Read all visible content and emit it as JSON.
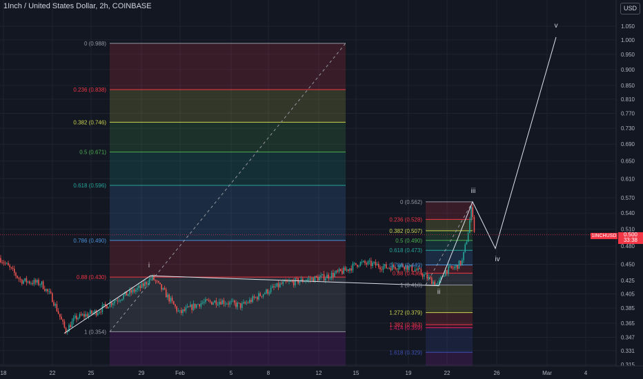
{
  "header": {
    "title": "1Inch / United States Dollar, 2h, COINBASE",
    "currency": "USD"
  },
  "price": {
    "symbol": "1INCHUSD",
    "last": "0.500",
    "countdown": "33:38"
  },
  "colors": {
    "background": "#131722",
    "grid": "#1f2330",
    "axis_text": "#b2b5be",
    "up": "#26a69a",
    "down": "#ef5350",
    "last_price": "#f23645",
    "wave_line": "#e0e3eb"
  },
  "chart_data": {
    "type": "candlestick",
    "symbol": "1INCHUSD",
    "interval": "2h",
    "exchange": "COINBASE",
    "y_axis": {
      "scale": "log",
      "ticks": [
        "1.050",
        "1.000",
        "0.950",
        "0.900",
        "0.850",
        "0.810",
        "0.770",
        "0.730",
        "0.690",
        "0.650",
        "0.610",
        "0.570",
        "0.540",
        "0.510",
        "0.480",
        "0.450",
        "0.425",
        "0.405",
        "0.385",
        "0.365",
        "0.347",
        "0.331",
        "0.315"
      ],
      "range": [
        0.31,
        1.09
      ]
    },
    "x_axis": {
      "ticks": [
        "18",
        "22",
        "25",
        "29",
        "Feb",
        "5",
        "8",
        "12",
        "15",
        "19",
        "22",
        "26",
        "Mar",
        "4"
      ]
    },
    "fib_large": {
      "levels": [
        {
          "label": "0 (0.988)",
          "value": 0.988,
          "color": "#9598a1"
        },
        {
          "label": "0.236 (0.838)",
          "value": 0.838,
          "color": "#f23645"
        },
        {
          "label": "0.382 (0.746)",
          "value": 0.746,
          "color": "#ced44f"
        },
        {
          "label": "0.5 (0.671)",
          "value": 0.671,
          "color": "#4caf50"
        },
        {
          "label": "0.618 (0.596)",
          "value": 0.596,
          "color": "#26a69a"
        },
        {
          "label": "0.786 (0.490)",
          "value": 0.49,
          "color": "#4a90d9"
        },
        {
          "label": "0.88 (0.430)",
          "value": 0.43,
          "color": "#f23645"
        },
        {
          "label": "1 (0.354)",
          "value": 0.354,
          "color": "#9598a1"
        }
      ]
    },
    "fib_small": {
      "levels": [
        {
          "label": "0 (0.562)",
          "value": 0.562,
          "color": "#9598a1"
        },
        {
          "label": "0.236 (0.528)",
          "value": 0.528,
          "color": "#f23645"
        },
        {
          "label": "0.382 (0.507)",
          "value": 0.507,
          "color": "#ced44f"
        },
        {
          "label": "0.5 (0.490)",
          "value": 0.49,
          "color": "#4caf50"
        },
        {
          "label": "0.618 (0.473)",
          "value": 0.473,
          "color": "#26a69a"
        },
        {
          "label": "0.786 (0.449)",
          "value": 0.449,
          "color": "#4a90d9"
        },
        {
          "label": "0.88 (0.436)",
          "value": 0.436,
          "color": "#f23645"
        },
        {
          "label": "1 (0.418)",
          "value": 0.418,
          "color": "#9598a1"
        },
        {
          "label": "1.272 (0.379)",
          "value": 0.379,
          "color": "#ced44f"
        },
        {
          "label": "1.382 (0.363)",
          "value": 0.363,
          "color": "#f23645"
        },
        {
          "label": "1.414 (0.359)",
          "value": 0.359,
          "color": "#e91e63"
        },
        {
          "label": "1.618 (0.329)",
          "value": 0.329,
          "color": "#3f51b5"
        }
      ]
    },
    "wave_labels": [
      "i",
      "ii",
      "iii",
      "iv",
      "v"
    ]
  }
}
